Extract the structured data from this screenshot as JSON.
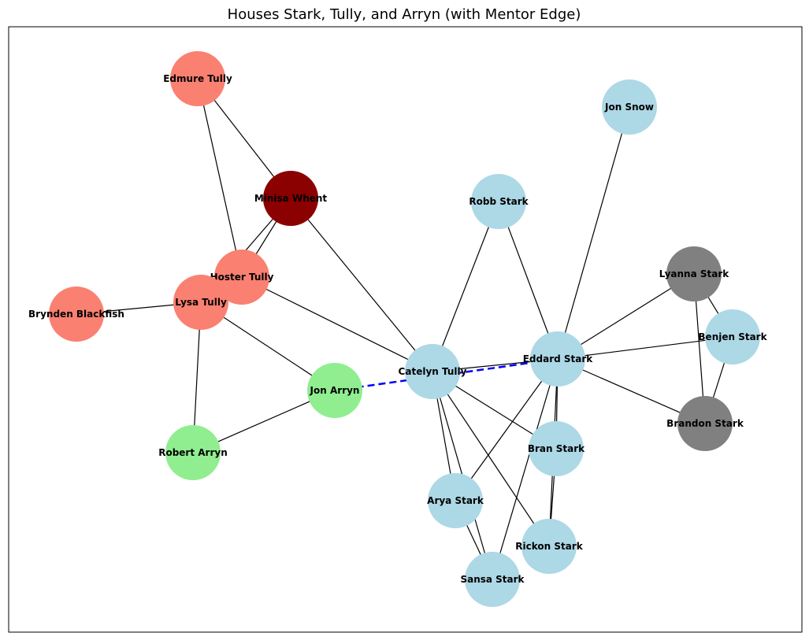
{
  "title": "Houses Stark, Tully, and Arryn (with Mentor Edge)",
  "colors": {
    "stark": "#add8e6",
    "tully": "#fa8072",
    "arryn": "#90ee90",
    "whent": "#8b0000",
    "elder_stark": "#808080",
    "edge": "#000000",
    "mentor_edge": "#0000ff"
  },
  "nodes": [
    {
      "id": "edmure",
      "label": "Edmure Tully",
      "house": "tully"
    },
    {
      "id": "minisa",
      "label": "Minisa Whent",
      "house": "whent"
    },
    {
      "id": "hoster",
      "label": "Hoster Tully",
      "house": "tully"
    },
    {
      "id": "lysa",
      "label": "Lysa Tully",
      "house": "tully"
    },
    {
      "id": "brynden",
      "label": "Brynden Blackfish",
      "house": "tully"
    },
    {
      "id": "jonarryn",
      "label": "Jon Arryn",
      "house": "arryn"
    },
    {
      "id": "robert",
      "label": "Robert Arryn",
      "house": "arryn"
    },
    {
      "id": "catelyn",
      "label": "Catelyn Tully",
      "house": "stark"
    },
    {
      "id": "robb",
      "label": "Robb Stark",
      "house": "stark"
    },
    {
      "id": "jonsnow",
      "label": "Jon Snow",
      "house": "stark"
    },
    {
      "id": "eddard",
      "label": "Eddard Stark",
      "house": "stark"
    },
    {
      "id": "lyanna",
      "label": "Lyanna Stark",
      "house": "elder_stark"
    },
    {
      "id": "benjen",
      "label": "Benjen Stark",
      "house": "stark"
    },
    {
      "id": "brandon",
      "label": "Brandon Stark",
      "house": "elder_stark"
    },
    {
      "id": "bran",
      "label": "Bran Stark",
      "house": "stark"
    },
    {
      "id": "arya",
      "label": "Arya Stark",
      "house": "stark"
    },
    {
      "id": "rickon",
      "label": "Rickon Stark",
      "house": "stark"
    },
    {
      "id": "sansa",
      "label": "Sansa Stark",
      "house": "stark"
    }
  ],
  "edges": [
    [
      "edmure",
      "minisa"
    ],
    [
      "edmure",
      "hoster"
    ],
    [
      "minisa",
      "hoster"
    ],
    [
      "minisa",
      "lysa"
    ],
    [
      "minisa",
      "catelyn"
    ],
    [
      "hoster",
      "catelyn"
    ],
    [
      "lysa",
      "brynden"
    ],
    [
      "lysa",
      "jonarryn"
    ],
    [
      "lysa",
      "robert"
    ],
    [
      "jonarryn",
      "robert"
    ],
    [
      "catelyn",
      "robb"
    ],
    [
      "catelyn",
      "eddard"
    ],
    [
      "catelyn",
      "bran"
    ],
    [
      "catelyn",
      "arya"
    ],
    [
      "catelyn",
      "rickon"
    ],
    [
      "catelyn",
      "sansa"
    ],
    [
      "robb",
      "eddard"
    ],
    [
      "jonsnow",
      "eddard"
    ],
    [
      "eddard",
      "lyanna"
    ],
    [
      "eddard",
      "benjen"
    ],
    [
      "eddard",
      "brandon"
    ],
    [
      "eddard",
      "bran"
    ],
    [
      "eddard",
      "arya"
    ],
    [
      "eddard",
      "rickon"
    ],
    [
      "eddard",
      "sansa"
    ],
    [
      "lyanna",
      "benjen"
    ],
    [
      "lyanna",
      "brandon"
    ],
    [
      "benjen",
      "brandon"
    ],
    [
      "bran",
      "rickon"
    ],
    [
      "arya",
      "sansa"
    ]
  ],
  "mentor_edges": [
    [
      "jonarryn",
      "eddard"
    ]
  ]
}
